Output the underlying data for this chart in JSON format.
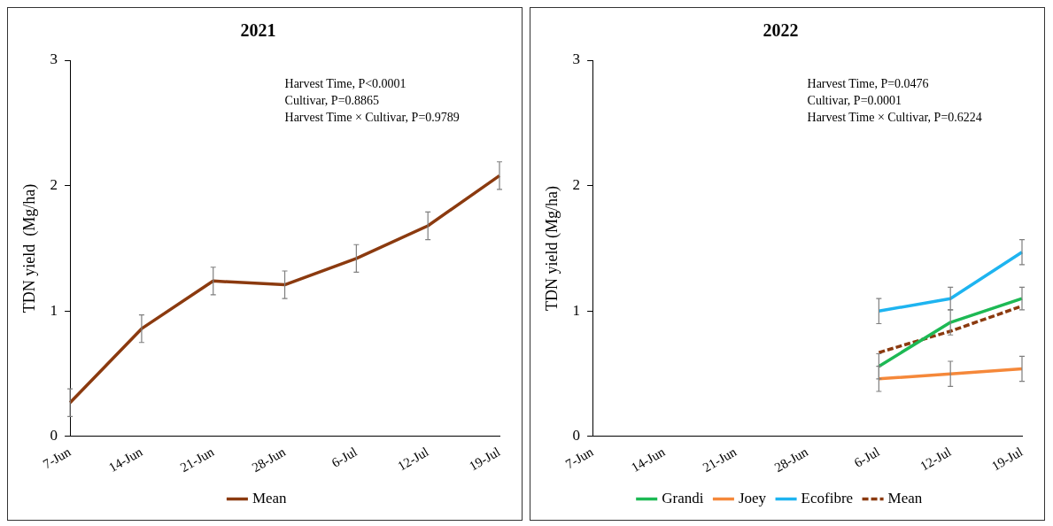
{
  "chart_data": [
    {
      "type": "line",
      "title": "2021",
      "ylabel": "TDN yield  (Mg/ha)",
      "categories": [
        "7-Jun",
        "14-Jun",
        "21-Jun",
        "28-Jun",
        "6-Jul",
        "12-Jul",
        "19-Jul"
      ],
      "series": [
        {
          "name": "Mean",
          "color": "#8b3a0f",
          "values": [
            0.27,
            0.86,
            1.24,
            1.21,
            1.42,
            1.68,
            2.08
          ],
          "errors": [
            0.11,
            0.11,
            0.11,
            0.11,
            0.11,
            0.11,
            0.11
          ]
        }
      ],
      "ylim": [
        0,
        3
      ],
      "yticks": [
        0,
        1,
        2,
        3
      ],
      "grid": false,
      "legend": "bottom",
      "marker": "none",
      "line_style": "solid",
      "annotations": [
        "Harvest Time, P<0.0001",
        "Cultivar, P=0.8865",
        "Harvest Time × Cultivar, P=0.9789"
      ]
    },
    {
      "type": "line",
      "title": "2022",
      "ylabel": "TDN yield (Mg/ha)",
      "categories": [
        "7-Jun",
        "14-Jun",
        "21-Jun",
        "28-Jun",
        "6-Jul",
        "12-Jul",
        "19-Jul"
      ],
      "series": [
        {
          "name": "Grandi",
          "color": "#1db954",
          "values": [
            null,
            null,
            null,
            null,
            0.56,
            0.91,
            1.1
          ],
          "errors": [
            null,
            null,
            null,
            null,
            0.1,
            0.1,
            0.09
          ]
        },
        {
          "name": "Joey",
          "color": "#f5883a",
          "values": [
            null,
            null,
            null,
            null,
            0.46,
            0.5,
            0.54
          ],
          "errors": [
            null,
            null,
            null,
            null,
            0.1,
            0.1,
            0.1
          ]
        },
        {
          "name": "Ecofibre",
          "color": "#1eb4f0",
          "values": [
            null,
            null,
            null,
            null,
            1.0,
            1.1,
            1.47
          ],
          "errors": [
            null,
            null,
            null,
            null,
            0.1,
            0.09,
            0.1
          ]
        },
        {
          "name": "Mean",
          "color": "#8b3a0f",
          "values": [
            null,
            null,
            null,
            null,
            0.67,
            0.84,
            1.04
          ],
          "line_style": "dashed"
        }
      ],
      "ylim": [
        0,
        3
      ],
      "yticks": [
        0,
        1,
        2,
        3
      ],
      "grid": false,
      "legend": "bottom",
      "marker": "none",
      "line_style": "solid",
      "annotations": [
        "Harvest Time, P=0.0476",
        "Cultivar, P=0.0001",
        "Harvest Time × Cultivar, P=0.6224"
      ]
    }
  ]
}
